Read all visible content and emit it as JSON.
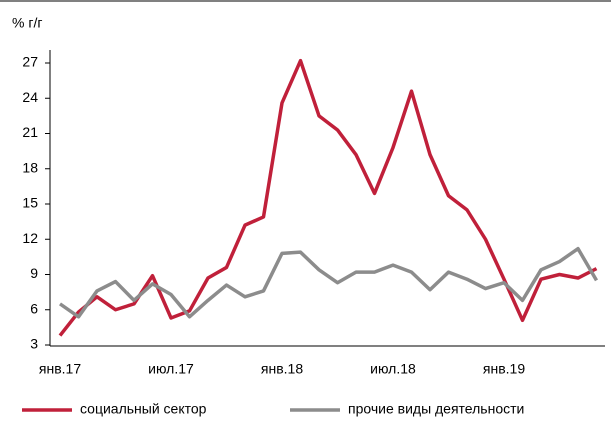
{
  "chart_data": {
    "type": "line",
    "y_label": "% г/г",
    "categories": [
      "янв.17",
      null,
      null,
      null,
      null,
      null,
      "июл.17",
      null,
      null,
      null,
      null,
      null,
      "янв.18",
      null,
      null,
      null,
      null,
      null,
      "июл.18",
      null,
      null,
      null,
      null,
      null,
      "янв.19",
      null,
      null,
      null,
      null,
      null
    ],
    "series": [
      {
        "name": "социальный сектор",
        "color": "#c0203a",
        "values": [
          3.8,
          5.8,
          7.1,
          6.0,
          6.5,
          8.9,
          5.3,
          5.9,
          8.7,
          9.6,
          13.2,
          13.9,
          23.6,
          27.2,
          22.5,
          21.3,
          19.2,
          15.9,
          19.8,
          24.6,
          19.2,
          15.7,
          14.5,
          12.0,
          8.6,
          5.1,
          8.6,
          9.0,
          8.7,
          9.5
        ]
      },
      {
        "name": "прочие виды деятельности",
        "color": "#8c8c8c",
        "values": [
          6.5,
          5.4,
          7.6,
          8.4,
          6.8,
          8.2,
          7.3,
          5.4,
          6.8,
          8.1,
          7.1,
          7.6,
          10.8,
          10.9,
          9.4,
          8.3,
          9.2,
          9.2,
          9.8,
          9.2,
          7.7,
          9.2,
          8.6,
          7.8,
          8.3,
          6.8,
          9.4,
          10.1,
          11.2,
          8.5
        ]
      }
    ],
    "ylim": [
      3,
      27
    ],
    "yticks": [
      3,
      6,
      9,
      12,
      15,
      18,
      21,
      24,
      27
    ],
    "grid": false,
    "legend": "bottom"
  }
}
